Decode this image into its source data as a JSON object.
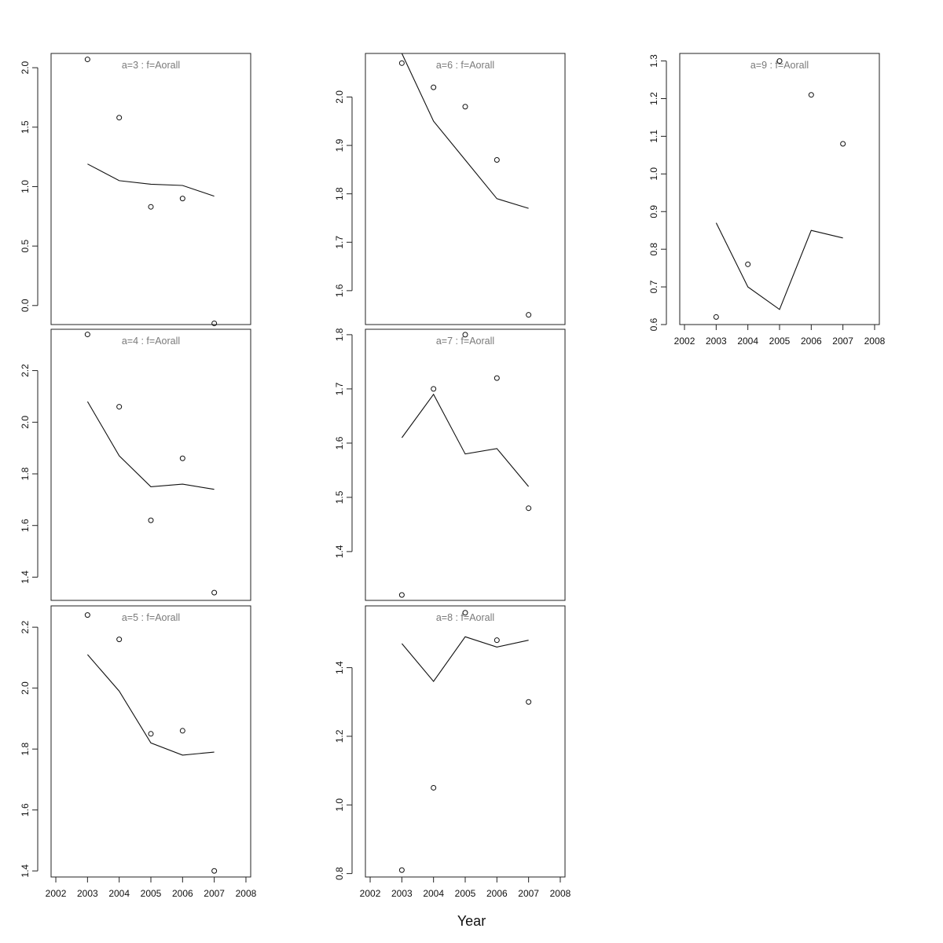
{
  "chart_data": {
    "type": "line",
    "layout": "trellis 3 columns, panels stacked top-to-bottom per column",
    "xlabel": "Year",
    "ylabel": "",
    "x_ticks": [
      2002,
      2003,
      2004,
      2005,
      2006,
      2007,
      2008
    ],
    "xlim": [
      2001.9,
      2008.1
    ],
    "colors": {
      "line": "#111111",
      "points": "#111111",
      "panel_title": "#7a7a7a"
    },
    "panels": [
      {
        "title": "a=3  :  f=Aorall",
        "ylim": [
          -0.16,
          2.12
        ],
        "y_ticks": [
          "0.0",
          "0.5",
          "1.0",
          "1.5",
          "2.0"
        ],
        "x": [
          2003,
          2004,
          2005,
          2006,
          2007
        ],
        "fitted": [
          1.19,
          1.05,
          1.02,
          1.01,
          0.92
        ],
        "observed": [
          2.07,
          1.58,
          0.83,
          0.9,
          -0.15
        ]
      },
      {
        "title": "a=4  :  f=Aorall",
        "ylim": [
          1.31,
          2.36
        ],
        "y_ticks": [
          "1.4",
          "1.6",
          "1.8",
          "2.0",
          "2.2"
        ],
        "x": [
          2003,
          2004,
          2005,
          2006,
          2007
        ],
        "fitted": [
          2.08,
          1.87,
          1.75,
          1.76,
          1.74
        ],
        "observed": [
          2.34,
          2.06,
          1.62,
          1.86,
          1.34
        ]
      },
      {
        "title": "a=5  :  f=Aorall",
        "ylim": [
          1.38,
          2.27
        ],
        "y_ticks": [
          "1.4",
          "1.6",
          "1.8",
          "2.0",
          "2.2"
        ],
        "x": [
          2003,
          2004,
          2005,
          2006,
          2007
        ],
        "fitted": [
          2.11,
          1.99,
          1.82,
          1.78,
          1.79
        ],
        "observed": [
          2.24,
          2.16,
          1.85,
          1.86,
          1.4
        ]
      },
      {
        "title": "a=6  :  f=Aorall",
        "ylim": [
          1.53,
          2.09
        ],
        "y_ticks": [
          "1.6",
          "1.7",
          "1.8",
          "1.9",
          "2.0"
        ],
        "x": [
          2003,
          2004,
          2005,
          2006,
          2007
        ],
        "fitted": [
          2.09,
          1.95,
          1.87,
          1.79,
          1.77
        ],
        "observed": [
          2.07,
          2.02,
          1.98,
          1.87,
          1.55
        ]
      },
      {
        "title": "a=7  :  f=Aorall",
        "ylim": [
          1.31,
          1.81
        ],
        "y_ticks": [
          "1.4",
          "1.5",
          "1.6",
          "1.7",
          "1.8"
        ],
        "x": [
          2003,
          2004,
          2005,
          2006,
          2007
        ],
        "fitted": [
          1.61,
          1.69,
          1.58,
          1.59,
          1.52
        ],
        "observed": [
          1.32,
          1.7,
          1.8,
          1.72,
          1.48
        ]
      },
      {
        "title": "a=8  :  f=Aorall",
        "ylim": [
          0.79,
          1.58
        ],
        "y_ticks": [
          "0.8",
          "1.0",
          "1.2",
          "1.4"
        ],
        "x": [
          2003,
          2004,
          2005,
          2006,
          2007
        ],
        "fitted": [
          1.47,
          1.36,
          1.49,
          1.46,
          1.48
        ],
        "observed": [
          0.81,
          1.05,
          1.56,
          1.48,
          1.3
        ]
      },
      {
        "title": "a=9  :  f=Aorall",
        "ylim": [
          0.6,
          1.32
        ],
        "y_ticks": [
          "0.6",
          "0.7",
          "0.8",
          "0.9",
          "1.0",
          "1.1",
          "1.2",
          "1.3"
        ],
        "x": [
          2003,
          2004,
          2005,
          2006,
          2007
        ],
        "fitted": [
          0.87,
          0.7,
          0.64,
          0.85,
          0.83
        ],
        "observed": [
          0.62,
          0.76,
          1.3,
          1.21,
          1.08
        ]
      }
    ]
  }
}
